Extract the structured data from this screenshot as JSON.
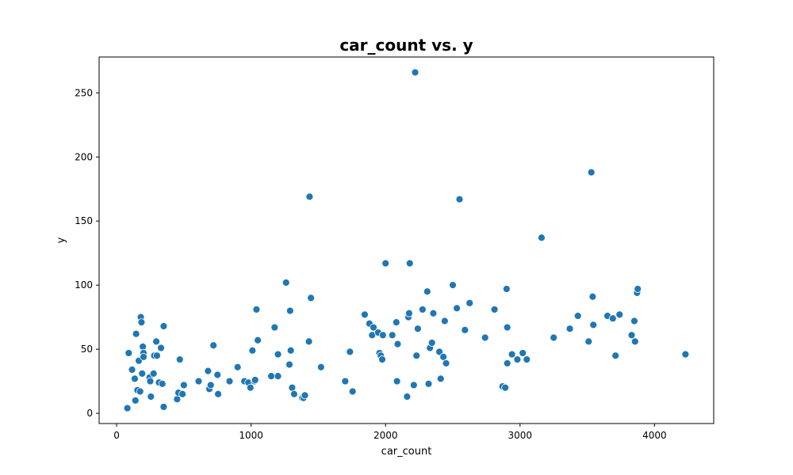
{
  "chart_data": {
    "type": "scatter",
    "title": "car_count vs. y",
    "xlabel": "car_count",
    "ylabel": "y",
    "xlim": [
      -130,
      4440
    ],
    "ylim": [
      -8,
      278
    ],
    "xticks": [
      0,
      1000,
      2000,
      3000,
      4000
    ],
    "yticks": [
      0,
      50,
      100,
      150,
      200,
      250
    ],
    "grid": false,
    "legend": "none",
    "marker_color": "#1f77b4",
    "marker_edge_color": "#ffffff",
    "series": [
      {
        "points": [
          [
            80,
            4
          ],
          [
            90,
            47
          ],
          [
            115,
            34
          ],
          [
            135,
            27
          ],
          [
            140,
            10
          ],
          [
            145,
            62
          ],
          [
            155,
            18
          ],
          [
            165,
            41
          ],
          [
            175,
            17
          ],
          [
            180,
            75
          ],
          [
            185,
            71
          ],
          [
            190,
            31
          ],
          [
            195,
            52
          ],
          [
            200,
            47
          ],
          [
            200,
            44
          ],
          [
            245,
            28
          ],
          [
            250,
            25
          ],
          [
            255,
            13
          ],
          [
            275,
            31
          ],
          [
            280,
            45
          ],
          [
            295,
            56
          ],
          [
            300,
            45
          ],
          [
            315,
            24
          ],
          [
            330,
            51
          ],
          [
            340,
            23
          ],
          [
            350,
            68
          ],
          [
            350,
            5
          ],
          [
            450,
            11
          ],
          [
            460,
            16
          ],
          [
            470,
            42
          ],
          [
            490,
            15
          ],
          [
            500,
            22
          ],
          [
            610,
            25
          ],
          [
            680,
            33
          ],
          [
            690,
            19
          ],
          [
            700,
            22
          ],
          [
            720,
            53
          ],
          [
            750,
            30
          ],
          [
            755,
            15
          ],
          [
            840,
            25
          ],
          [
            900,
            36
          ],
          [
            950,
            25
          ],
          [
            980,
            24
          ],
          [
            995,
            20
          ],
          [
            1010,
            49
          ],
          [
            1025,
            25
          ],
          [
            1030,
            26
          ],
          [
            1040,
            81
          ],
          [
            1050,
            57
          ],
          [
            1150,
            29
          ],
          [
            1175,
            67
          ],
          [
            1200,
            29
          ],
          [
            1200,
            46
          ],
          [
            1260,
            102
          ],
          [
            1285,
            38
          ],
          [
            1290,
            80
          ],
          [
            1295,
            49
          ],
          [
            1305,
            20
          ],
          [
            1320,
            15
          ],
          [
            1380,
            12
          ],
          [
            1390,
            12
          ],
          [
            1400,
            14
          ],
          [
            1430,
            56
          ],
          [
            1435,
            169
          ],
          [
            1445,
            90
          ],
          [
            1520,
            36
          ],
          [
            1700,
            25
          ],
          [
            1735,
            48
          ],
          [
            1755,
            17
          ],
          [
            1845,
            77
          ],
          [
            1880,
            70
          ],
          [
            1900,
            61
          ],
          [
            1910,
            67
          ],
          [
            1945,
            63
          ],
          [
            1955,
            47
          ],
          [
            1965,
            45
          ],
          [
            1975,
            42
          ],
          [
            1980,
            61
          ],
          [
            2000,
            117
          ],
          [
            2050,
            61
          ],
          [
            2080,
            71
          ],
          [
            2085,
            25
          ],
          [
            2090,
            54
          ],
          [
            2160,
            13
          ],
          [
            2170,
            75
          ],
          [
            2175,
            78
          ],
          [
            2180,
            117
          ],
          [
            2210,
            22
          ],
          [
            2220,
            266
          ],
          [
            2230,
            45
          ],
          [
            2240,
            66
          ],
          [
            2275,
            81
          ],
          [
            2310,
            95
          ],
          [
            2320,
            23
          ],
          [
            2330,
            51
          ],
          [
            2345,
            55
          ],
          [
            2355,
            78
          ],
          [
            2400,
            48
          ],
          [
            2410,
            27
          ],
          [
            2430,
            44
          ],
          [
            2440,
            72
          ],
          [
            2450,
            39
          ],
          [
            2500,
            100
          ],
          [
            2530,
            82
          ],
          [
            2550,
            167
          ],
          [
            2590,
            65
          ],
          [
            2625,
            86
          ],
          [
            2740,
            59
          ],
          [
            2810,
            81
          ],
          [
            2870,
            21
          ],
          [
            2890,
            20
          ],
          [
            2900,
            97
          ],
          [
            2905,
            67
          ],
          [
            2905,
            39
          ],
          [
            2940,
            46
          ],
          [
            2980,
            42
          ],
          [
            3020,
            47
          ],
          [
            3050,
            42
          ],
          [
            3160,
            137
          ],
          [
            3250,
            59
          ],
          [
            3370,
            66
          ],
          [
            3430,
            76
          ],
          [
            3510,
            56
          ],
          [
            3530,
            188
          ],
          [
            3540,
            91
          ],
          [
            3545,
            69
          ],
          [
            3650,
            76
          ],
          [
            3690,
            74
          ],
          [
            3710,
            45
          ],
          [
            3740,
            77
          ],
          [
            3830,
            61
          ],
          [
            3850,
            72
          ],
          [
            3855,
            56
          ],
          [
            3870,
            94
          ],
          [
            3875,
            97
          ],
          [
            4230,
            46
          ]
        ]
      }
    ]
  }
}
